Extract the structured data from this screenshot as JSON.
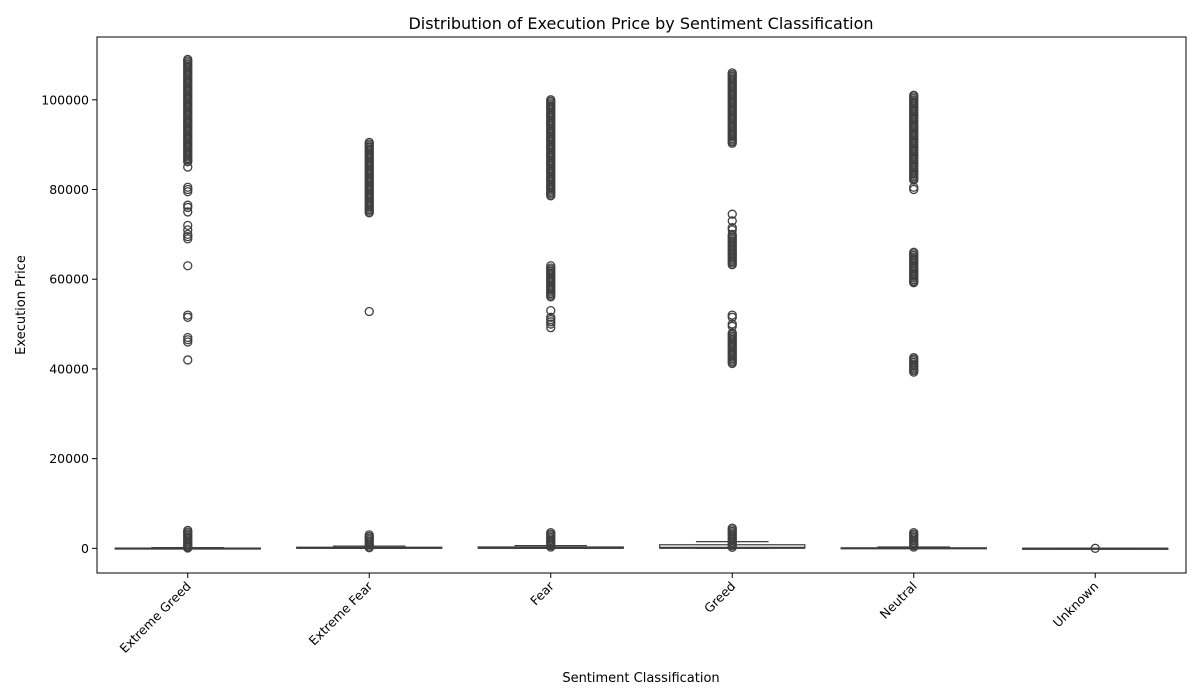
{
  "chart_data": {
    "type": "box",
    "title": "Distribution of Execution Price by Sentiment Classification",
    "xlabel": "Sentiment Classification",
    "ylabel": "Execution Price",
    "ylim": [
      -5500,
      114000
    ],
    "yticks": [
      0,
      20000,
      40000,
      60000,
      80000,
      100000
    ],
    "grid": false,
    "box_color": "#3f3f3f",
    "categories": [
      "Extreme Greed",
      "Extreme Fear",
      "Fear",
      "Greed",
      "Neutral",
      "Unknown"
    ],
    "boxes": [
      {
        "category": "Extreme Greed",
        "whisker_low": 0,
        "q1": 0,
        "median": 5,
        "q3": 60,
        "whisker_high": 150,
        "outlier_ranges": [
          [
            86000,
            109000
          ],
          [
            0,
            4000
          ]
        ],
        "outliers": [
          85000,
          80500,
          80000,
          79500,
          76500,
          76000,
          75000,
          72000,
          71000,
          70000,
          69500,
          69000,
          63000,
          52000,
          51500,
          47000,
          46500,
          46000,
          42000,
          300
        ]
      },
      {
        "category": "Extreme Fear",
        "whisker_low": 0,
        "q1": 30,
        "median": 100,
        "q3": 250,
        "whisker_high": 500,
        "outlier_ranges": [
          [
            74500,
            90500
          ],
          [
            0,
            3000
          ]
        ],
        "outliers": [
          52800
        ]
      },
      {
        "category": "Fear",
        "whisker_low": 0,
        "q1": 30,
        "median": 100,
        "q3": 300,
        "whisker_high": 600,
        "outlier_ranges": [
          [
            78500,
            100000
          ],
          [
            0,
            3500
          ],
          [
            56000,
            62500
          ]
        ],
        "outliers": [
          63000,
          53000,
          51500,
          51000,
          50500,
          50000,
          49200
        ]
      },
      {
        "category": "Greed",
        "whisker_low": 0,
        "q1": 60,
        "median": 200,
        "q3": 800,
        "whisker_high": 1500,
        "outlier_ranges": [
          [
            90000,
            106000
          ],
          [
            41000,
            48000
          ],
          [
            63000,
            70000
          ],
          [
            0,
            4500
          ]
        ],
        "outliers": [
          74500,
          73000,
          71500,
          71000,
          52000,
          51500,
          50000,
          49500
        ]
      },
      {
        "category": "Neutral",
        "whisker_low": 0,
        "q1": 5,
        "median": 30,
        "q3": 120,
        "whisker_high": 300,
        "outlier_ranges": [
          [
            82000,
            101000
          ],
          [
            59000,
            66000
          ],
          [
            39000,
            42500
          ],
          [
            0,
            3500
          ]
        ],
        "outliers": [
          80500,
          80000,
          59500
        ]
      },
      {
        "category": "Unknown",
        "whisker_low": 0,
        "q1": 0,
        "median": 0,
        "q3": 0,
        "whisker_high": 0,
        "outlier_ranges": [],
        "outliers": [
          0
        ]
      }
    ]
  }
}
